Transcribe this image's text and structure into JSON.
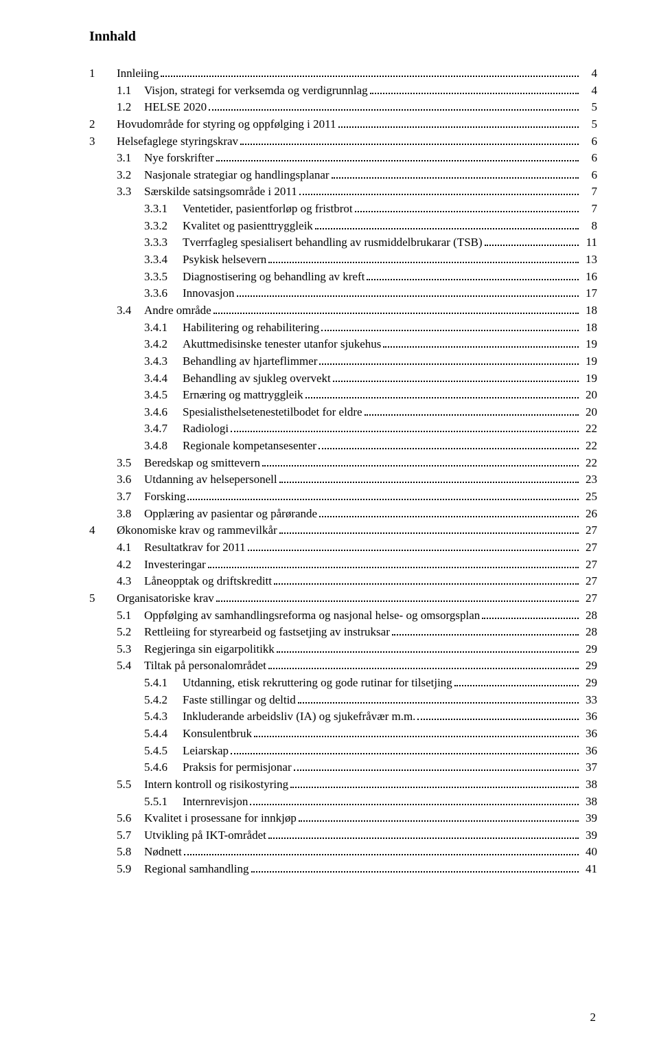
{
  "title": "Innhald",
  "footer_page_number": "2",
  "toc": [
    {
      "level": 1,
      "num": "1",
      "label": "Innleiing",
      "page": "4"
    },
    {
      "level": 2,
      "num": "1.1",
      "label": "Visjon, strategi for verksemda og verdigrunnlag",
      "page": "4"
    },
    {
      "level": 2,
      "num": "1.2",
      "label": "HELSE 2020",
      "page": "5"
    },
    {
      "level": 1,
      "num": "2",
      "label": "Hovudområde for styring og oppfølging i 2011",
      "page": "5"
    },
    {
      "level": 1,
      "num": "3",
      "label": "Helsefaglege styringskrav",
      "page": "6"
    },
    {
      "level": 2,
      "num": "3.1",
      "label": "Nye forskrifter",
      "page": "6"
    },
    {
      "level": 2,
      "num": "3.2",
      "label": "Nasjonale strategiar og handlingsplanar",
      "page": "6"
    },
    {
      "level": 2,
      "num": "3.3",
      "label": "Særskilde satsingsområde i 2011",
      "page": "7"
    },
    {
      "level": 3,
      "num": "3.3.1",
      "label": "Ventetider, pasientforløp og fristbrot",
      "page": "7"
    },
    {
      "level": 3,
      "num": "3.3.2",
      "label": "Kvalitet og pasienttryggleik",
      "page": "8"
    },
    {
      "level": 3,
      "num": "3.3.3",
      "label": "Tverrfagleg spesialisert behandling av rusmiddelbrukarar (TSB)",
      "page": "11"
    },
    {
      "level": 3,
      "num": "3.3.4",
      "label": "Psykisk helsevern",
      "page": "13"
    },
    {
      "level": 3,
      "num": "3.3.5",
      "label": "Diagnostisering og behandling av kreft",
      "page": "16"
    },
    {
      "level": 3,
      "num": "3.3.6",
      "label": "Innovasjon",
      "page": "17"
    },
    {
      "level": 2,
      "num": "3.4",
      "label": "Andre område",
      "page": "18"
    },
    {
      "level": 3,
      "num": "3.4.1",
      "label": "Habilitering og rehabilitering",
      "page": "18"
    },
    {
      "level": 3,
      "num": "3.4.2",
      "label": "Akuttmedisinske tenester utanfor sjukehus",
      "page": "19"
    },
    {
      "level": 3,
      "num": "3.4.3",
      "label": "Behandling av hjarteflimmer",
      "page": "19"
    },
    {
      "level": 3,
      "num": "3.4.4",
      "label": "Behandling av sjukleg overvekt",
      "page": "19"
    },
    {
      "level": 3,
      "num": "3.4.5",
      "label": "Ernæring og mattryggleik",
      "page": "20"
    },
    {
      "level": 3,
      "num": "3.4.6",
      "label": "Spesialisthelsetenestetilbodet for eldre",
      "page": "20"
    },
    {
      "level": 3,
      "num": "3.4.7",
      "label": "Radiologi",
      "page": "22"
    },
    {
      "level": 3,
      "num": "3.4.8",
      "label": "Regionale kompetansesenter",
      "page": "22"
    },
    {
      "level": 2,
      "num": "3.5",
      "label": "Beredskap og smittevern",
      "page": "22"
    },
    {
      "level": 2,
      "num": "3.6",
      "label": "Utdanning av helsepersonell",
      "page": "23"
    },
    {
      "level": 2,
      "num": "3.7",
      "label": "Forsking",
      "page": "25"
    },
    {
      "level": 2,
      "num": "3.8",
      "label": "Opplæring av pasientar og pårørande",
      "page": "26"
    },
    {
      "level": 1,
      "num": "4",
      "label": "Økonomiske krav og rammevilkår",
      "page": "27"
    },
    {
      "level": 2,
      "num": "4.1",
      "label": "Resultatkrav for 2011",
      "page": "27"
    },
    {
      "level": 2,
      "num": "4.2",
      "label": "Investeringar",
      "page": "27"
    },
    {
      "level": 2,
      "num": "4.3",
      "label": "Låneopptak og driftskreditt",
      "page": "27"
    },
    {
      "level": 1,
      "num": "5",
      "label": "Organisatoriske krav",
      "page": "27"
    },
    {
      "level": 2,
      "num": "5.1",
      "label": "Oppfølging av samhandlingsreforma og nasjonal helse- og omsorgsplan",
      "page": "28"
    },
    {
      "level": 2,
      "num": "5.2",
      "label": "Rettleiing for styrearbeid og fastsetjing av instruksar",
      "page": "28"
    },
    {
      "level": 2,
      "num": "5.3",
      "label": "Regjeringa sin eigarpolitikk",
      "page": "29"
    },
    {
      "level": 2,
      "num": "5.4",
      "label": "Tiltak på personalområdet",
      "page": "29"
    },
    {
      "level": 3,
      "num": "5.4.1",
      "label": "Utdanning, etisk rekruttering og gode rutinar for tilsetjing",
      "page": "29"
    },
    {
      "level": 3,
      "num": "5.4.2",
      "label": "Faste stillingar og deltid",
      "page": "33"
    },
    {
      "level": 3,
      "num": "5.4.3",
      "label": "Inkluderande arbeidsliv (IA) og sjukefråvær m.m.",
      "page": "36"
    },
    {
      "level": 3,
      "num": "5.4.4",
      "label": "Konsulentbruk",
      "page": "36"
    },
    {
      "level": 3,
      "num": "5.4.5",
      "label": "Leiarskap",
      "page": "36"
    },
    {
      "level": 3,
      "num": "5.4.6",
      "label": "Praksis for permisjonar",
      "page": "37"
    },
    {
      "level": 2,
      "num": "5.5",
      "label": "Intern kontroll og risikostyring",
      "page": "38"
    },
    {
      "level": 3,
      "num": "5.5.1",
      "label": "Internrevisjon",
      "page": "38"
    },
    {
      "level": 2,
      "num": "5.6",
      "label": "Kvalitet i prosessane for innkjøp",
      "page": "39"
    },
    {
      "level": 2,
      "num": "5.7",
      "label": "Utvikling på IKT-området",
      "page": "39"
    },
    {
      "level": 2,
      "num": "5.8",
      "label": "Nødnett",
      "page": "40"
    },
    {
      "level": 2,
      "num": "5.9",
      "label": "Regional samhandling",
      "page": "41"
    }
  ]
}
